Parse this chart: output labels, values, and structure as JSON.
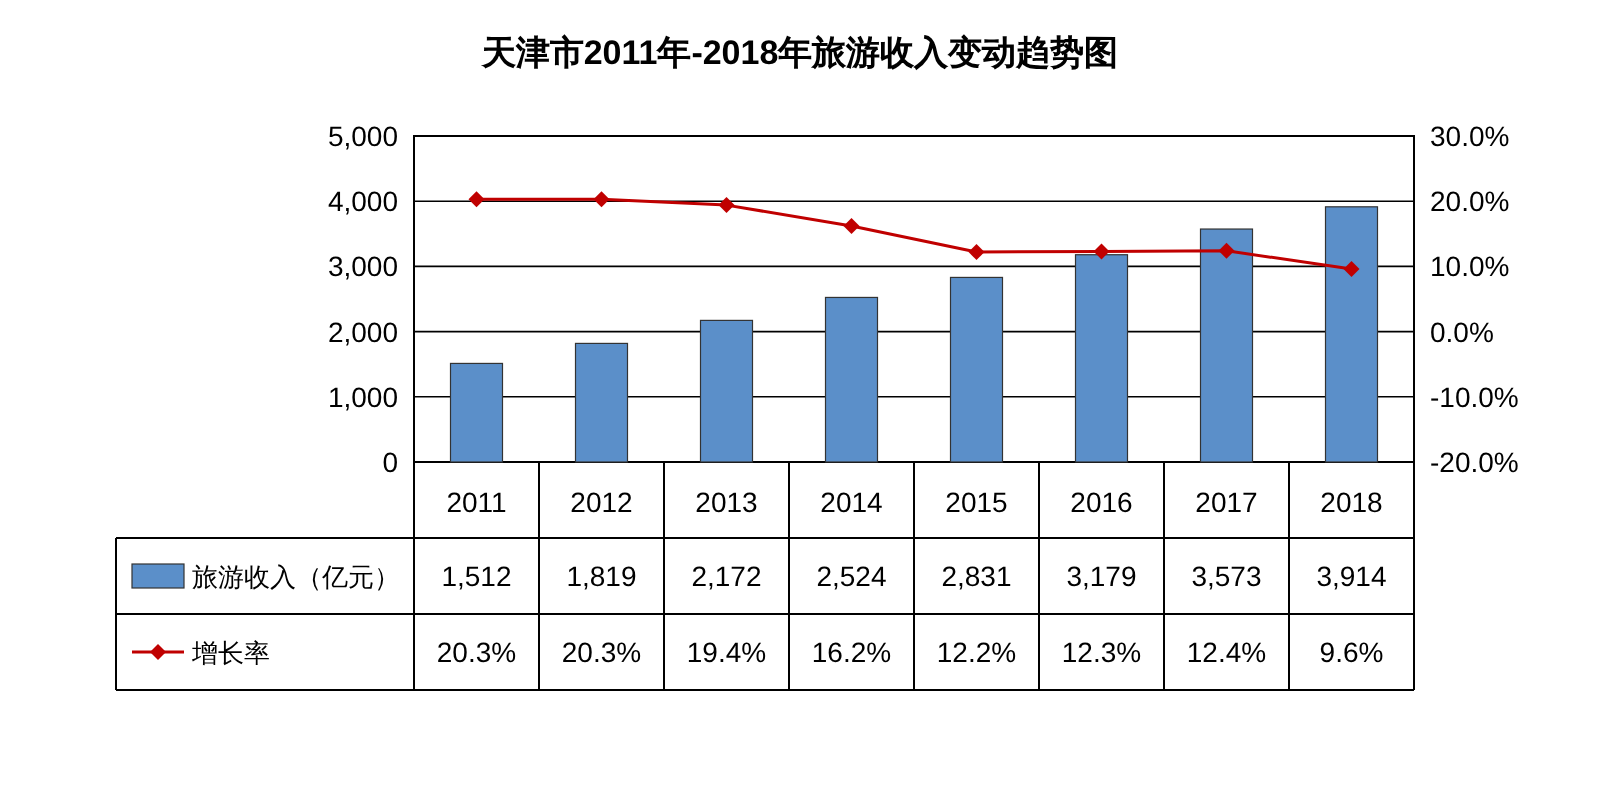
{
  "chart_data": {
    "type": "bar",
    "title": "天津市2011年-2018年旅游收入变动趋势图",
    "categories": [
      "2011",
      "2012",
      "2013",
      "2014",
      "2015",
      "2016",
      "2017",
      "2018"
    ],
    "series": [
      {
        "name": "旅游收入（亿元）",
        "color": "#5b8fc9",
        "values": [
          1512,
          1819,
          2172,
          2524,
          2831,
          3179,
          3573,
          3914
        ],
        "value_labels": [
          "1,512",
          "1,819",
          "2,172",
          "2,524",
          "2,831",
          "3,179",
          "3,573",
          "3,914"
        ]
      },
      {
        "name": "增长率",
        "type": "line",
        "axis": "y2",
        "color": "#c00000",
        "values": [
          20.3,
          20.3,
          19.4,
          16.2,
          12.2,
          12.3,
          12.4,
          9.6
        ],
        "value_labels": [
          "20.3%",
          "20.3%",
          "19.4%",
          "16.2%",
          "12.2%",
          "12.3%",
          "12.4%",
          "9.6%"
        ]
      }
    ],
    "ylim": [
      0,
      5000
    ],
    "yticks": [
      0,
      {
        "value": 1000,
        "label": "1,000"
      },
      {
        "value": 2000,
        "label": "2,000"
      },
      {
        "value": 3000,
        "label": "3,000"
      },
      {
        "value": 4000,
        "label": "4,000"
      },
      {
        "value": 5000,
        "label": "5,000"
      }
    ],
    "y2lim": [
      -20,
      30
    ],
    "y2ticks": [
      {
        "value": -20,
        "label": "-20.0%"
      },
      {
        "value": -10,
        "label": "-10.0%"
      },
      {
        "value": 0,
        "label": "0.0%"
      },
      {
        "value": 10,
        "label": "10.0%"
      },
      {
        "value": 20,
        "label": "20.0%"
      },
      {
        "value": 30,
        "label": "30.0%"
      }
    ],
    "grid": "y",
    "legend": "bottom",
    "marker": "diamond",
    "line_style": "solid"
  }
}
